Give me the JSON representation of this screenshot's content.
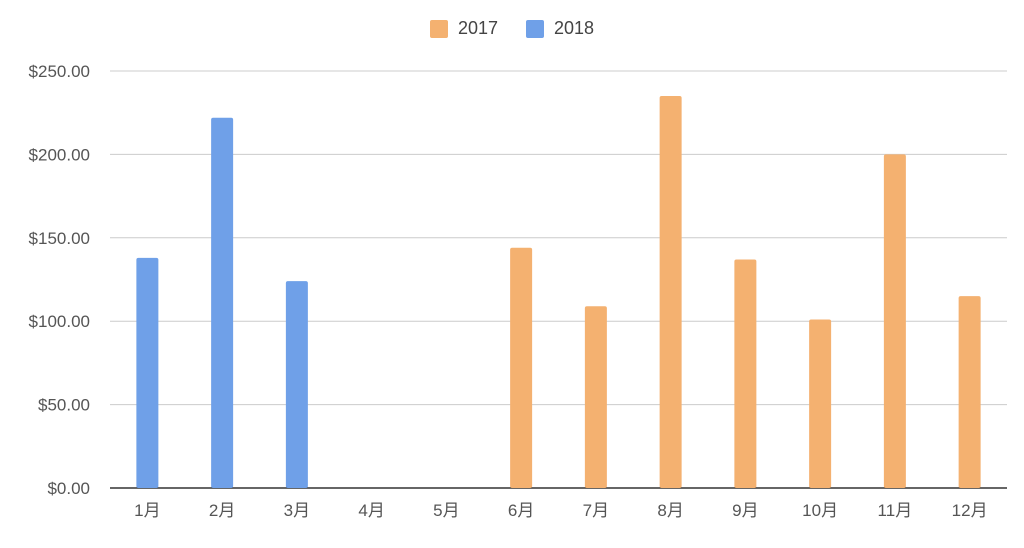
{
  "chart_data": {
    "type": "bar",
    "categories": [
      "1月",
      "2月",
      "3月",
      "4月",
      "5月",
      "6月",
      "7月",
      "8月",
      "9月",
      "10月",
      "11月",
      "12月"
    ],
    "series": [
      {
        "name": "2017",
        "color": "#F4B170",
        "values": [
          null,
          null,
          null,
          null,
          null,
          144,
          109,
          235,
          137,
          101,
          200,
          115
        ]
      },
      {
        "name": "2018",
        "color": "#6FA0E8",
        "values": [
          138,
          222,
          124,
          null,
          null,
          null,
          null,
          null,
          null,
          null,
          null,
          null
        ]
      }
    ],
    "ylim": [
      0,
      250
    ],
    "yticks": [
      0,
      50,
      100,
      150,
      200,
      250
    ],
    "ytick_labels": [
      "$0.00",
      "$50.00",
      "$100.00",
      "$150.00",
      "$200.00",
      "$250.00"
    ],
    "grid": true,
    "legend_position": "top-center",
    "xlabel": "",
    "ylabel": ""
  }
}
